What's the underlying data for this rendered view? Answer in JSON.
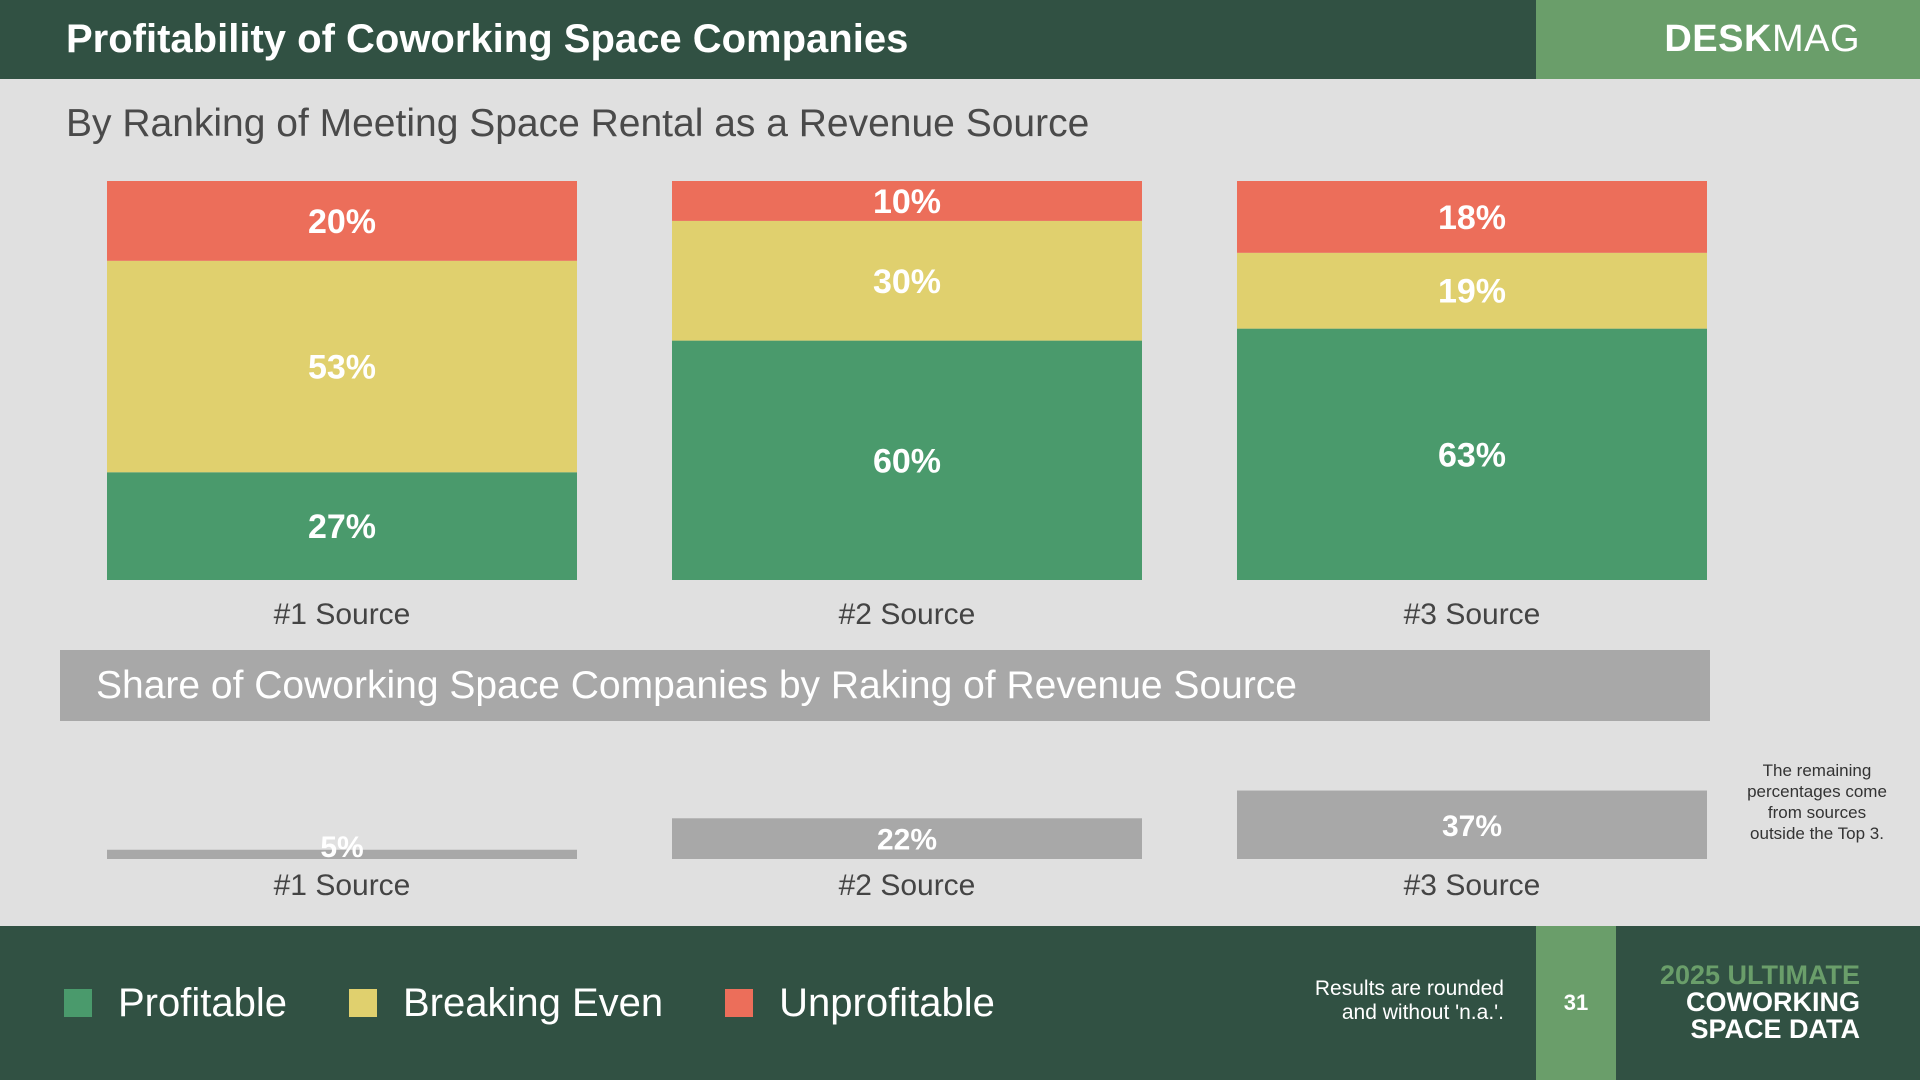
{
  "header": {
    "title": "Profitability of Coworking Space Companies",
    "brand_bold": "DESK",
    "brand_light": "MAG"
  },
  "subtitle": "By Ranking of Meeting Space Rental as a Revenue Source",
  "colors": {
    "profitable": "#4a9a6c",
    "breaking_even": "#e0d06e",
    "unprofitable": "#ec6e5a",
    "share": "#a8a8a8",
    "dark_green": "#315143",
    "light_green": "#6a9e6a"
  },
  "chart_data": [
    {
      "type": "bar",
      "stacked": true,
      "normalized": true,
      "title": "By Ranking of Meeting Space Rental as a Revenue Source",
      "categories": [
        "#1 Source",
        "#2 Source",
        "#3 Source"
      ],
      "series": [
        {
          "name": "Profitable",
          "values": [
            27,
            60,
            63
          ]
        },
        {
          "name": "Breaking Even",
          "values": [
            53,
            30,
            19
          ]
        },
        {
          "name": "Unprofitable",
          "values": [
            20,
            10,
            18
          ]
        }
      ],
      "labels_suffix": "%",
      "ylim": [
        0,
        100
      ]
    },
    {
      "type": "bar",
      "title": "Share of Coworking Space Companies by Raking of Revenue Source",
      "categories": [
        "#1 Source",
        "#2 Source",
        "#3 Source"
      ],
      "values": [
        5,
        22,
        37
      ],
      "labels_suffix": "%",
      "ylim": [
        0,
        100
      ]
    }
  ],
  "banner": {
    "text": "Share of Coworking Space Companies by Raking of Revenue Source"
  },
  "note": "The remaining percentages come from sources outside the Top 3.",
  "legend": {
    "items": [
      {
        "label": "Profitable"
      },
      {
        "label": "Breaking Even"
      },
      {
        "label": "Unprofitable"
      }
    ]
  },
  "footer": {
    "rounded_line1": "Results are rounded",
    "rounded_line2": "and without 'n.a.'.",
    "page": "31",
    "report_line1": "2025 ULTIMATE",
    "report_line2": "COWORKING",
    "report_line3": "SPACE DATA"
  }
}
